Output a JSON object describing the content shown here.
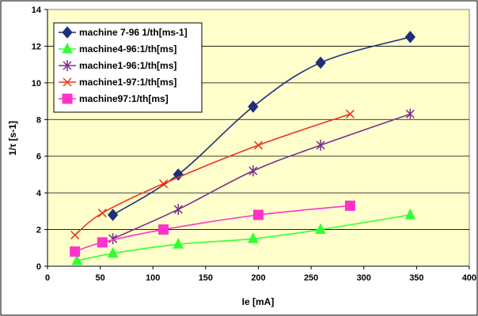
{
  "chart_data": {
    "type": "line",
    "xlabel": "Ie [mA]",
    "ylabel": "1/τ [s-1]",
    "xlim": [
      0,
      400
    ],
    "ylim": [
      0,
      14
    ],
    "xticks": [
      0,
      50,
      100,
      150,
      200,
      250,
      300,
      350,
      400
    ],
    "yticks": [
      0,
      2,
      4,
      6,
      8,
      10,
      12,
      14
    ],
    "grid": "horizontal",
    "plot_background": "#ffffcc",
    "legend_position": "top-left",
    "series": [
      {
        "name": "machine 7-96 1/th[ms-1]",
        "color": "#1f2f7a",
        "marker": "diamond",
        "x": [
          62,
          124,
          195,
          259,
          344
        ],
        "y": [
          2.8,
          5.0,
          8.7,
          11.1,
          12.5
        ]
      },
      {
        "name": "machine4-96:1/th[ms]",
        "color": "#33ff33",
        "marker": "triangle",
        "x": [
          28,
          62,
          124,
          195,
          259,
          344
        ],
        "y": [
          0.3,
          0.7,
          1.2,
          1.5,
          2.0,
          2.8
        ]
      },
      {
        "name": "machine1-96:1/th[ms]",
        "color": "#7a2f8c",
        "marker": "star",
        "x": [
          62,
          124,
          195,
          259,
          344
        ],
        "y": [
          1.5,
          3.1,
          5.2,
          6.6,
          8.3
        ]
      },
      {
        "name": "machine1-97:1/th[ms]",
        "color": "#ee3322",
        "marker": "x",
        "x": [
          26,
          52,
          110,
          200,
          287
        ],
        "y": [
          1.7,
          2.9,
          4.5,
          6.6,
          8.3
        ]
      },
      {
        "name": "machine97:1/th[ms]",
        "color": "#ff33cc",
        "marker": "square",
        "x": [
          26,
          52,
          110,
          200,
          287
        ],
        "y": [
          0.8,
          1.3,
          2.0,
          2.8,
          3.3
        ]
      }
    ]
  }
}
